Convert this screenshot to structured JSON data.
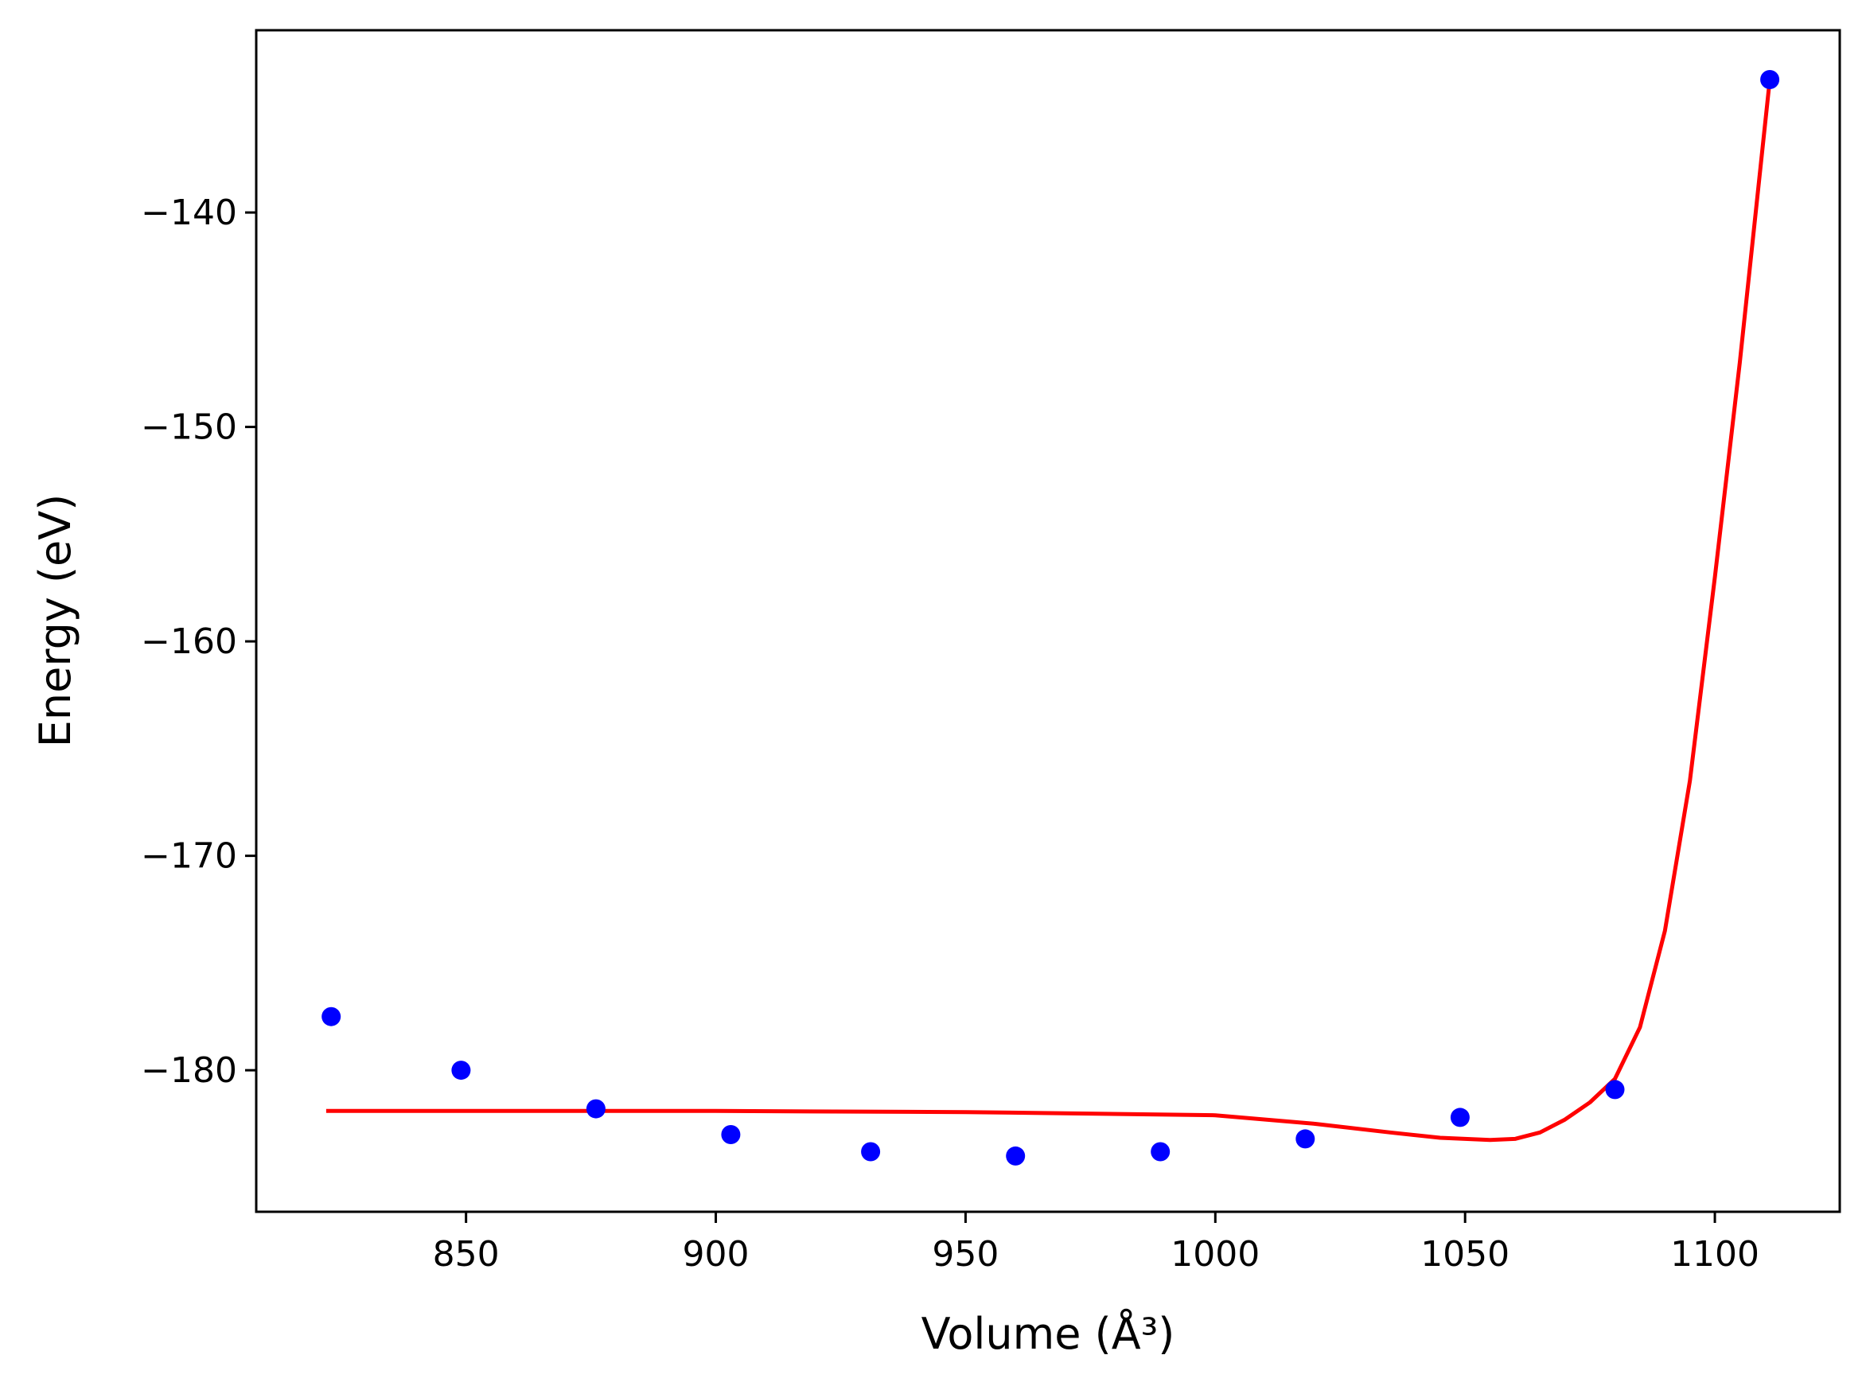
{
  "chart_data": {
    "type": "scatter",
    "xlabel": "Volume (Å³)",
    "ylabel": "Energy (eV)",
    "xlim": [
      808,
      1125
    ],
    "ylim": [
      -186.6,
      -131.5
    ],
    "x_ticks": [
      850,
      900,
      950,
      1000,
      1050,
      1100
    ],
    "y_ticks": [
      -140,
      -150,
      -160,
      -170,
      -180
    ],
    "x_tick_labels": [
      "850",
      "900",
      "950",
      "1000",
      "1050",
      "1100"
    ],
    "y_tick_labels": [
      "−140",
      "−150",
      "−160",
      "−170",
      "−180"
    ],
    "grid": false,
    "legend": "none",
    "series": [
      {
        "kind": "points",
        "color": "#0000ff",
        "x": [
          823,
          849,
          876,
          903,
          931,
          960,
          989,
          1018,
          1049,
          1080,
          1111
        ],
        "y": [
          -177.5,
          -180.0,
          -181.8,
          -183.0,
          -183.8,
          -184.0,
          -183.8,
          -183.2,
          -182.2,
          -180.9,
          -133.8
        ]
      },
      {
        "kind": "fit-line",
        "color": "#ff0000",
        "x": [
          822,
          850,
          900,
          950,
          1000,
          1020,
          1035,
          1045,
          1050,
          1055,
          1060,
          1065,
          1070,
          1075,
          1080,
          1085,
          1090,
          1095,
          1100,
          1105,
          1111
        ],
        "y": [
          -181.9,
          -181.9,
          -181.9,
          -181.95,
          -182.1,
          -182.5,
          -182.9,
          -183.15,
          -183.2,
          -183.25,
          -183.2,
          -182.9,
          -182.3,
          -181.5,
          -180.4,
          -178.0,
          -173.5,
          -166.5,
          -157.0,
          -147.0,
          -133.8
        ]
      }
    ]
  }
}
